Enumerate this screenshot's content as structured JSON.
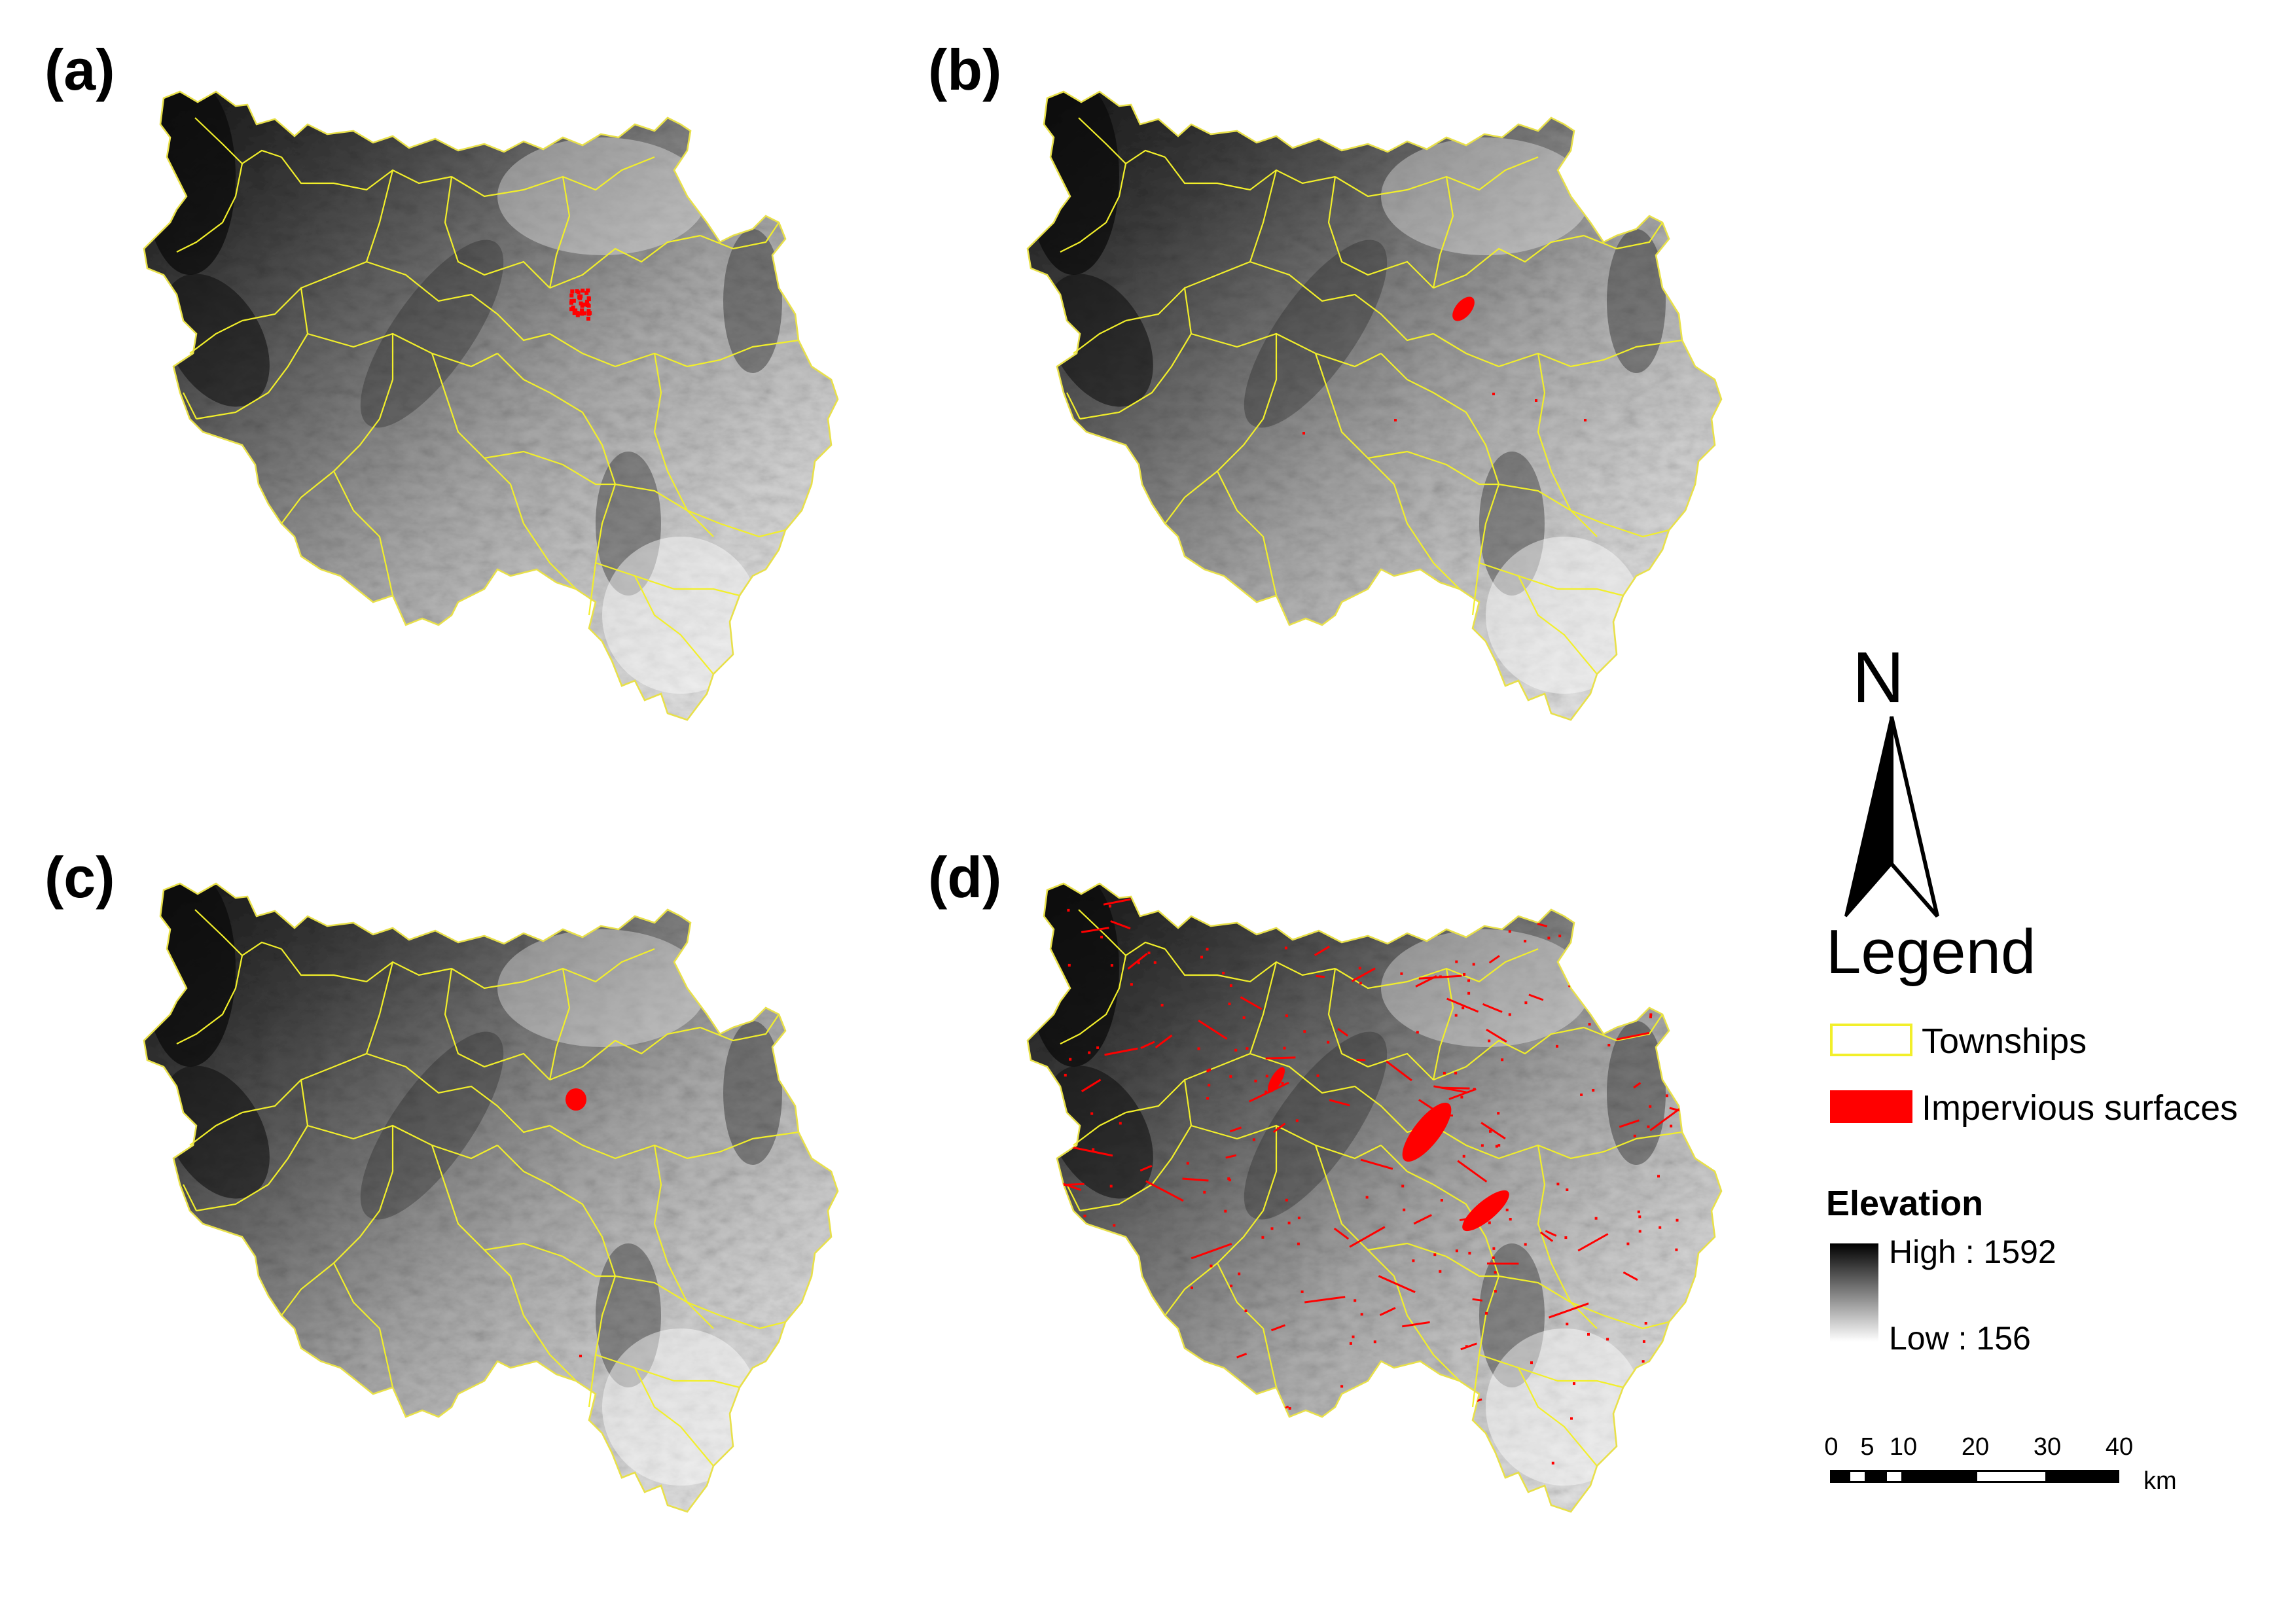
{
  "panels": [
    {
      "label": "(a)"
    },
    {
      "label": "(b)"
    },
    {
      "label": "(c)"
    },
    {
      "label": "(d)"
    }
  ],
  "north": {
    "letter": "N"
  },
  "legend": {
    "title": "Legend",
    "townships_label": "Townships",
    "impervious_label": "Impervious surfaces",
    "elevation_title": "Elevation",
    "elevation_high": "High : 1592",
    "elevation_low": "Low : 156"
  },
  "colors": {
    "township_line": "#f2ef2a",
    "impervious": "#ff0000",
    "boundary": "#e8e04a"
  },
  "scale": {
    "ticks": [
      "0",
      "5",
      "10",
      "20",
      "30",
      "40"
    ],
    "unit": "km"
  }
}
